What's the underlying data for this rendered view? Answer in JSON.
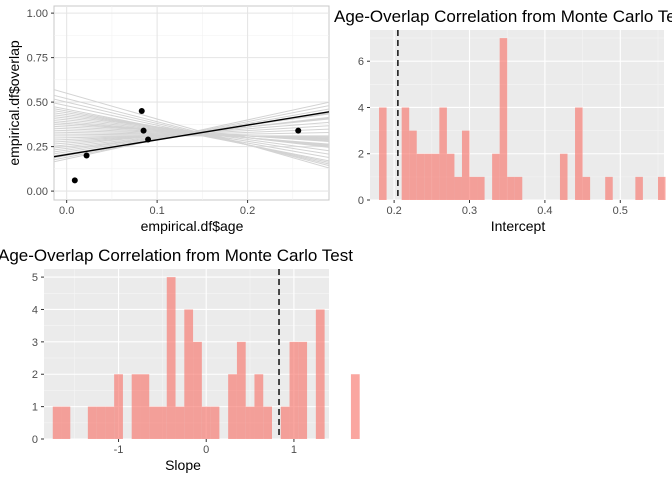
{
  "chart_data": [
    {
      "type": "scatter",
      "title": "",
      "xlabel": "empirical.df$age",
      "ylabel": "empirical.df$overlap",
      "xlim": [
        -0.014,
        0.29
      ],
      "ylim": [
        -0.05,
        1.04
      ],
      "x_ticks": [
        0.0,
        0.1,
        0.2
      ],
      "x_tick_labels": [
        "0.0",
        "0.1",
        "0.2"
      ],
      "y_ticks": [
        0.0,
        0.25,
        0.5,
        0.75,
        1.0
      ],
      "y_tick_labels": [
        "0.00",
        "0.25",
        "0.50",
        "0.75",
        "1.00"
      ],
      "background": "#ffffff",
      "grid": true,
      "points": {
        "x": [
          0.009,
          0.022,
          0.083,
          0.085,
          0.09,
          0.256
        ],
        "y": [
          0.06,
          0.2,
          0.45,
          0.34,
          0.29,
          0.34
        ],
        "color": "#000000"
      },
      "fitted_line": {
        "intercept": 0.205,
        "slope": 0.83,
        "color": "#000000"
      },
      "simulated_lines": {
        "color": "#d3d3d3",
        "intercepts": [
          0.55,
          0.52,
          0.5,
          0.48,
          0.46,
          0.45,
          0.44,
          0.43,
          0.42,
          0.41,
          0.4,
          0.39,
          0.38,
          0.38,
          0.37,
          0.36,
          0.35,
          0.34,
          0.33,
          0.32,
          0.31,
          0.3,
          0.29,
          0.28,
          0.27,
          0.26,
          0.25,
          0.24,
          0.23,
          0.22,
          0.21,
          0.2,
          0.19,
          0.18
        ],
        "slopes": [
          -1.45,
          -1.3,
          -1.2,
          -1.1,
          -1.0,
          -0.9,
          -0.8,
          -0.7,
          -0.6,
          -0.55,
          -0.5,
          -0.45,
          -0.4,
          -0.35,
          -0.3,
          -0.25,
          -0.2,
          -0.15,
          -0.1,
          -0.05,
          0.0,
          0.1,
          0.2,
          0.3,
          0.4,
          0.5,
          0.55,
          0.6,
          0.7,
          0.75,
          0.8,
          0.9,
          1.0,
          1.1
        ]
      }
    },
    {
      "type": "bar",
      "title": "Age-Overlap Correlation from Monte Carlo Test",
      "xlabel": "Intercept",
      "ylabel": "",
      "xlim": [
        0.168,
        0.558
      ],
      "ylim": [
        0,
        7.35
      ],
      "x_ticks": [
        0.2,
        0.3,
        0.4,
        0.5
      ],
      "x_tick_labels": [
        "0.2",
        "0.3",
        "0.4",
        "0.5"
      ],
      "y_ticks": [
        0,
        2,
        4,
        6
      ],
      "y_tick_labels": [
        "0",
        "2",
        "4",
        "6"
      ],
      "background": "#ebebeb",
      "grid": true,
      "bar_color": "#f8766d",
      "bin_start": 0.18,
      "bin_width": 0.01,
      "values": [
        4,
        0,
        0,
        4,
        3,
        2,
        2,
        2,
        4,
        2,
        1,
        3,
        1,
        1,
        0,
        2,
        7,
        1,
        1,
        0,
        0,
        0,
        0,
        0,
        2,
        0,
        4,
        1,
        0,
        0,
        1,
        0,
        0,
        0,
        1,
        0,
        0,
        1
      ],
      "reference_line": {
        "x": 0.205,
        "style": "dashed",
        "color": "#000000"
      }
    },
    {
      "type": "bar",
      "title": "Age-Overlap Correlation from Monte Carlo Test",
      "xlabel": "Slope",
      "ylabel": "",
      "xlim": [
        -1.85,
        1.4
      ],
      "ylim": [
        0,
        5.25
      ],
      "x_ticks": [
        -1,
        0,
        1
      ],
      "x_tick_labels": [
        "-1",
        "0",
        "1"
      ],
      "y_ticks": [
        0,
        1,
        2,
        3,
        4,
        5
      ],
      "y_tick_labels": [
        "0",
        "1",
        "2",
        "3",
        "4",
        "5"
      ],
      "background": "#ebebeb",
      "grid": true,
      "bar_color": "#f8766d",
      "bin_start": -1.75,
      "bin_width": 0.1,
      "values": [
        1,
        1,
        0,
        0,
        1,
        1,
        1,
        2,
        0,
        2,
        2,
        1,
        1,
        5,
        1,
        4,
        3,
        1,
        1,
        0,
        2,
        3,
        1,
        2,
        1,
        0,
        1,
        3,
        3,
        0,
        4,
        0,
        0,
        0,
        2
      ],
      "reference_line": {
        "x": 0.83,
        "style": "dashed",
        "color": "#000000"
      }
    }
  ]
}
